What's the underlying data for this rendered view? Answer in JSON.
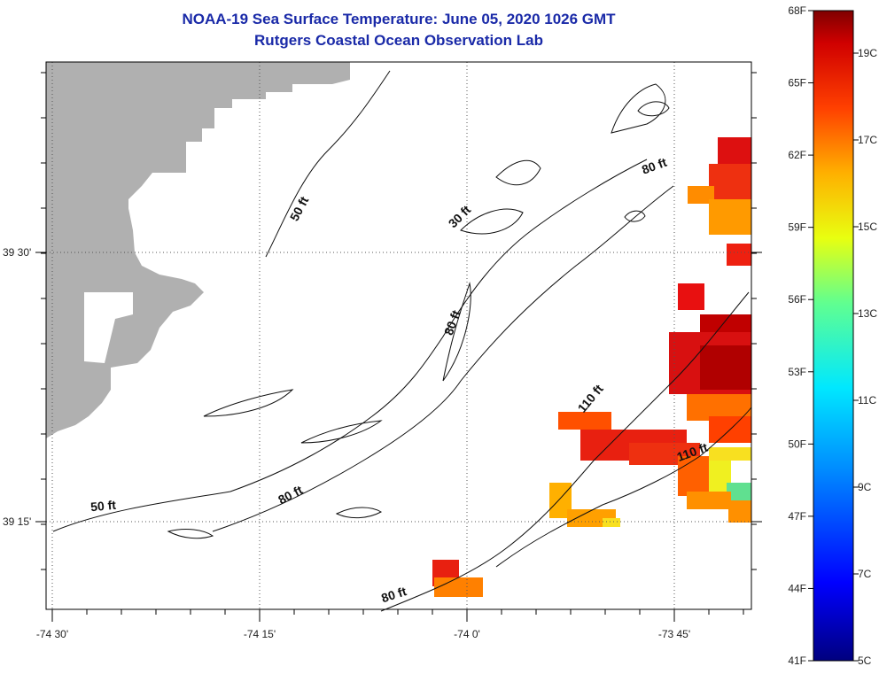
{
  "title_line1": "NOAA-19 Sea Surface Temperature:  June 05, 2020 1026 GMT",
  "title_line2": "Rutgers Coastal Ocean Observation Lab",
  "x_ticks": [
    {
      "lon": -74.5,
      "label": "-74 30'"
    },
    {
      "lon": -74.25,
      "label": "-74 15'"
    },
    {
      "lon": -74.0,
      "label": "-74 0'"
    },
    {
      "lon": -73.75,
      "label": "-73 45'"
    }
  ],
  "y_ticks": [
    {
      "lat": 39.5,
      "label": "39 30'"
    },
    {
      "lat": 39.25,
      "label": "39 15'"
    }
  ],
  "contour_labels": [
    {
      "text": "50 ft",
      "x": 342,
      "y": 238,
      "rot": -62
    },
    {
      "text": "30 ft",
      "x": 522,
      "y": 248,
      "rot": -45
    },
    {
      "text": "80 ft",
      "x": 740,
      "y": 192,
      "rot": -20
    },
    {
      "text": "80 ft",
      "x": 515,
      "y": 366,
      "rot": -70
    },
    {
      "text": "110 ft",
      "x": 670,
      "y": 453,
      "rot": -50
    },
    {
      "text": "110 ft",
      "x": 783,
      "y": 515,
      "rot": -20
    },
    {
      "text": "80 ft",
      "x": 330,
      "y": 563,
      "rot": -28
    },
    {
      "text": "50 ft",
      "x": 117,
      "y": 576,
      "rot": -5
    },
    {
      "text": "80 ft",
      "x": 446,
      "y": 676,
      "rot": -18
    }
  ],
  "colorbar": {
    "f_labels": [
      "68F",
      "65F",
      "62F",
      "59F",
      "56F",
      "53F",
      "50F",
      "47F",
      "44F",
      "41F"
    ],
    "c_labels": [
      "19C",
      "17C",
      "15C",
      "13C",
      "11C",
      "9C",
      "7C",
      "5C"
    ],
    "land_color": "#b0b0b0"
  }
}
